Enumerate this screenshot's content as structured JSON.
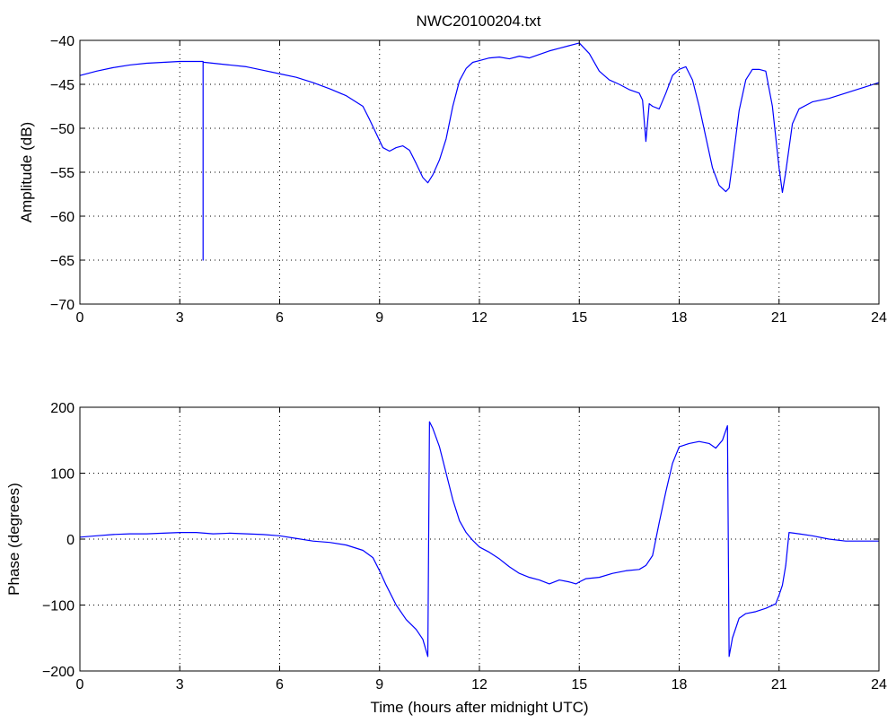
{
  "figure_title": "NWC20100204.txt",
  "chart_data": [
    {
      "type": "line",
      "title": "NWC20100204.txt",
      "xlabel": "",
      "ylabel": "Amplitude (dB)",
      "xlim": [
        0,
        24
      ],
      "ylim": [
        -70,
        -40
      ],
      "x_ticks": [
        0,
        3,
        6,
        9,
        12,
        15,
        18,
        21,
        24
      ],
      "y_ticks": [
        -70,
        -65,
        -60,
        -55,
        -50,
        -45,
        -40
      ],
      "x_tick_labels": [
        "0",
        "3",
        "6",
        "9",
        "12",
        "15",
        "18",
        "21",
        "24"
      ],
      "y_tick_labels": [
        "−70",
        "−65",
        "−60",
        "−55",
        "−50",
        "−45",
        "−40"
      ],
      "grid": true,
      "color": "#0000ff",
      "series": [
        {
          "x": [
            0,
            0.5,
            1,
            1.5,
            2,
            2.5,
            3,
            3.5,
            3.7,
            3.7,
            3.7,
            3.75,
            4,
            4.5,
            5,
            5.5,
            6,
            6.5,
            7,
            7.5,
            8,
            8.5,
            8.7,
            8.9,
            9.1,
            9.3,
            9.5,
            9.7,
            9.9,
            10.1,
            10.3,
            10.45,
            10.6,
            10.8,
            11,
            11.2,
            11.4,
            11.6,
            11.8,
            12,
            12.3,
            12.6,
            12.9,
            13.2,
            13.5,
            13.8,
            14.1,
            14.4,
            14.7,
            15,
            15.3,
            15.6,
            15.9,
            16.2,
            16.5,
            16.8,
            16.9,
            17.0,
            17.1,
            17.2,
            17.4,
            17.6,
            17.8,
            18.0,
            18.2,
            18.4,
            18.6,
            18.8,
            19.0,
            19.2,
            19.4,
            19.5,
            19.6,
            19.8,
            20.0,
            20.2,
            20.4,
            20.6,
            20.8,
            21.0,
            21.1,
            21.2,
            21.4,
            21.6,
            22,
            22.5,
            23,
            23.5,
            24
          ],
          "y": [
            -44.0,
            -43.5,
            -43.1,
            -42.8,
            -42.6,
            -42.5,
            -42.4,
            -42.4,
            -42.4,
            -65,
            -42.5,
            -42.5,
            -42.6,
            -42.8,
            -43.0,
            -43.4,
            -43.8,
            -44.2,
            -44.8,
            -45.5,
            -46.3,
            -47.5,
            -49.0,
            -50.6,
            -52.2,
            -52.6,
            -52.2,
            -52.0,
            -52.5,
            -54.0,
            -55.6,
            -56.2,
            -55.3,
            -53.6,
            -51.2,
            -47.5,
            -44.6,
            -43.2,
            -42.5,
            -42.3,
            -42.0,
            -41.9,
            -42.1,
            -41.8,
            -42.0,
            -41.6,
            -41.2,
            -40.9,
            -40.6,
            -40.3,
            -41.5,
            -43.5,
            -44.5,
            -45.0,
            -45.6,
            -46.0,
            -46.8,
            -51.5,
            -47.2,
            -47.5,
            -47.8,
            -46.0,
            -44.0,
            -43.3,
            -43.0,
            -44.5,
            -47.5,
            -51.0,
            -54.5,
            -56.5,
            -57.2,
            -56.8,
            -54.0,
            -48.0,
            -44.5,
            -43.3,
            -43.3,
            -43.5,
            -47.5,
            -54.5,
            -57.3,
            -55.0,
            -49.5,
            -47.8,
            -47.0,
            -46.6,
            -46.0,
            -45.4,
            -44.8
          ]
        }
      ]
    },
    {
      "type": "line",
      "title": "",
      "xlabel": "Time (hours after midnight UTC)",
      "ylabel": "Phase (degrees)",
      "xlim": [
        0,
        24
      ],
      "ylim": [
        -200,
        200
      ],
      "x_ticks": [
        0,
        3,
        6,
        9,
        12,
        15,
        18,
        21,
        24
      ],
      "y_ticks": [
        -200,
        -100,
        0,
        100,
        200
      ],
      "x_tick_labels": [
        "0",
        "3",
        "6",
        "9",
        "12",
        "15",
        "18",
        "21",
        "24"
      ],
      "y_tick_labels": [
        "−200",
        "−100",
        "0",
        "100",
        "200"
      ],
      "grid": true,
      "color": "#0000ff",
      "series": [
        {
          "x": [
            0,
            0.5,
            1,
            1.5,
            2,
            2.5,
            3,
            3.5,
            4,
            4.5,
            5,
            5.5,
            6,
            6.5,
            7,
            7.5,
            8,
            8.5,
            8.8,
            9.0,
            9.2,
            9.5,
            9.8,
            10.1,
            10.3,
            10.45,
            10.5,
            10.6,
            10.8,
            11.0,
            11.2,
            11.4,
            11.6,
            11.8,
            12.0,
            12.3,
            12.6,
            12.9,
            13.2,
            13.5,
            13.8,
            14.1,
            14.4,
            14.7,
            14.9,
            15.0,
            15.2,
            15.6,
            16.0,
            16.4,
            16.8,
            17.0,
            17.2,
            17.4,
            17.6,
            17.8,
            18.0,
            18.3,
            18.6,
            18.9,
            19.1,
            19.3,
            19.45,
            19.5,
            19.6,
            19.8,
            20.0,
            20.3,
            20.6,
            20.9,
            21.0,
            21.1,
            21.2,
            21.3,
            21.6,
            22,
            22.5,
            23,
            23.5,
            24
          ],
          "y": [
            3,
            5,
            7,
            8,
            8,
            9,
            10,
            10,
            8,
            9,
            8,
            7,
            5,
            1,
            -3,
            -5,
            -9,
            -17,
            -28,
            -48,
            -70,
            -100,
            -122,
            -137,
            -152,
            -178,
            178,
            168,
            140,
            100,
            60,
            28,
            10,
            -2,
            -12,
            -20,
            -30,
            -42,
            -52,
            -58,
            -62,
            -68,
            -62,
            -65,
            -68,
            -65,
            -60,
            -58,
            -52,
            -48,
            -46,
            -40,
            -25,
            25,
            72,
            115,
            140,
            145,
            148,
            145,
            138,
            150,
            172,
            -178,
            -150,
            -120,
            -113,
            -110,
            -105,
            -98,
            -85,
            -70,
            -40,
            10,
            8,
            5,
            0,
            -3,
            -3,
            -3
          ]
        }
      ]
    }
  ]
}
